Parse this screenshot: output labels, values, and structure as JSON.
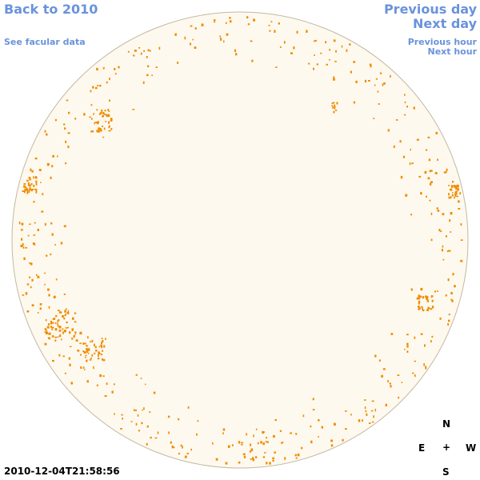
{
  "nav": {
    "back_to_year": "Back to 2010",
    "see_facular": "See facular data",
    "previous_day": "Previous day",
    "next_day": "Next day",
    "previous_hour": "Previous hour",
    "next_hour": "Next hour"
  },
  "compass": {
    "north": "N",
    "south": "S",
    "east": "E",
    "west": "W",
    "center": "+"
  },
  "timestamp": "2010-12-04T21:58:56",
  "colors": {
    "link": "#6a93dc",
    "disk_fill": "#fef9ef",
    "disk_edge": "#c4b8a2",
    "facula": "#f08c00"
  }
}
